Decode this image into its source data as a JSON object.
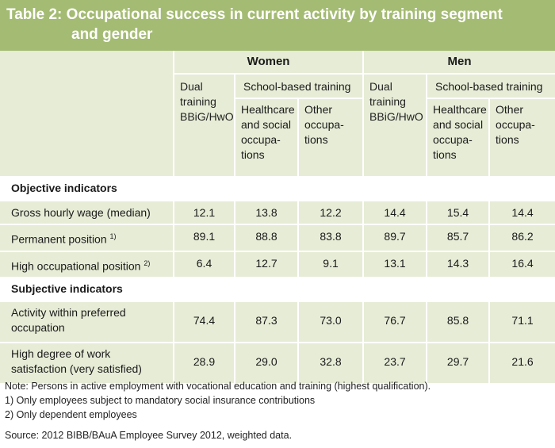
{
  "title": {
    "line1": "Table 2: Occupational success in current activity by training segment",
    "line2": "and gender"
  },
  "groups": {
    "women": "Women",
    "men": "Men"
  },
  "headers": {
    "dual": [
      "Dual",
      "training",
      "BBiG/HwO"
    ],
    "school_based": "School-based training",
    "healthcare": [
      "Healthcare",
      "and social",
      "occupa-",
      "tions"
    ],
    "other": [
      "Other",
      "occupa-",
      "tions"
    ]
  },
  "sections": {
    "objective": "Objective indicators",
    "subjective": "Subjective indicators"
  },
  "rows": [
    {
      "label": "Gross hourly wage (median)",
      "sup": "",
      "values": [
        "12.1",
        "13.8",
        "12.2",
        "14.4",
        "15.4",
        "14.4"
      ]
    },
    {
      "label": "Permanent position",
      "sup": "1)",
      "values": [
        "89.1",
        "88.8",
        "83.8",
        "89.7",
        "85.7",
        "86.2"
      ]
    },
    {
      "label": "High occupational position",
      "sup": "2)",
      "values": [
        "6.4",
        "12.7",
        "9.1",
        "13.1",
        "14.3",
        "16.4"
      ]
    },
    {
      "label": [
        "Activity within preferred",
        "occupation"
      ],
      "values": [
        "74.4",
        "87.3",
        "73.0",
        "76.7",
        "85.8",
        "71.1"
      ]
    },
    {
      "label": [
        "High degree of work",
        "satisfaction (very satisfied)"
      ],
      "values": [
        "28.9",
        "29.0",
        "32.8",
        "23.7",
        "29.7",
        "21.6"
      ]
    }
  ],
  "notes": {
    "note": "Note: Persons in active employment with vocational education and training (highest qualification).",
    "fn1": "1)  Only employees subject to mandatory social insurance contributions",
    "fn2": "2)  Only dependent employees",
    "source": "Source: 2012 BIBB/BAuA Employee Survey 2012, weighted data."
  },
  "colors": {
    "header_green": "#a4bb73",
    "light_green": "#e6ecd6"
  }
}
